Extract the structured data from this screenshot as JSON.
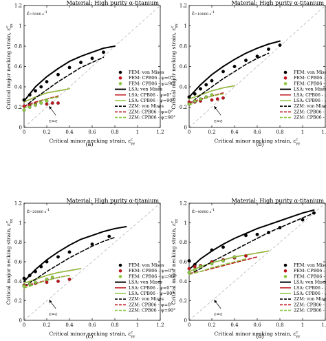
{
  "figure": {
    "common": {
      "material_title": "Material: High purity α-titanium",
      "xlabel": "Critical minor necking strain, ε",
      "xlabel_sub": "yy",
      "xlabel_sup": "c",
      "ylabel": "Critical major necking strain, ε",
      "ylabel_sub": "xx",
      "ylabel_sup": "c",
      "x_ticks": [
        "0",
        "0.2",
        "0.4",
        "0.6",
        "0.8",
        "1",
        "1.2"
      ],
      "y_ticks": [
        "0",
        "0.2",
        "0.4",
        "0.6",
        "0.8",
        "1",
        "1.2"
      ],
      "equal_strain_label": "ε",
      "equal_strain_label_rest": "=ε",
      "legend": [
        "FEM: von Mises",
        "FEM: CPB06 - ψ=0°",
        "FEM: CPB06 - ψ=90°",
        "LSA: von Mises",
        "LSA: CPB06 - ψ=0°",
        "LSA: CPB06 - ψ=90°",
        "2ZM: von Mises",
        "2ZM: CPB06 - ψ=0°",
        "2ZM: CPB06 - ψ=90°"
      ],
      "colors": {
        "von_mises": "#000000",
        "cpb06_psi0": "#c0141c",
        "cpb06_psi90": "#8dc63f",
        "diagonal": "#b4b4b4"
      }
    },
    "panels": [
      {
        "rate_label": "ε̇",
        "rate_text": "=5000 s",
        "caption": "(a)"
      },
      {
        "rate_label": "ε̇",
        "rate_text": "=10000 s",
        "caption": "(b)"
      },
      {
        "rate_label": "ε̇",
        "rate_text": "=20000 s",
        "caption": "(c)"
      },
      {
        "rate_label": "ε̇",
        "rate_text": "=40000 s",
        "caption": "(d)"
      }
    ]
  },
  "chart_data": [
    {
      "type": "scatter",
      "xlabel": "Critical minor necking strain, εᶜyy",
      "ylabel": "Critical major necking strain, εᶜxx",
      "xlim": [
        0,
        1.2
      ],
      "ylim": [
        0,
        1.2
      ],
      "series": [
        {
          "name": "FEM: von Mises",
          "kind": "points",
          "x": [
            0,
            0.05,
            0.1,
            0.15,
            0.2,
            0.3,
            0.4,
            0.5,
            0.6,
            0.7
          ],
          "y": [
            0.27,
            0.32,
            0.36,
            0.4,
            0.45,
            0.52,
            0.59,
            0.64,
            0.68,
            0.74
          ]
        },
        {
          "name": "FEM: CPB06 - ψ=0°",
          "kind": "points",
          "x": [
            0,
            0.05,
            0.1,
            0.2,
            0.25,
            0.3
          ],
          "y": [
            0.21,
            0.22,
            0.23,
            0.23,
            0.24,
            0.24
          ]
        },
        {
          "name": "FEM: CPB06 - ψ=90°",
          "kind": "points",
          "x": [
            0,
            0.05,
            0.1,
            0.15,
            0.2
          ],
          "y": [
            0.17,
            0.2,
            0.22,
            0.24,
            0.26
          ]
        },
        {
          "name": "LSA: von Mises",
          "kind": "line",
          "x": [
            0,
            0.1,
            0.2,
            0.3,
            0.4,
            0.5,
            0.6,
            0.7,
            0.8
          ],
          "y": [
            0.26,
            0.4,
            0.5,
            0.58,
            0.65,
            0.7,
            0.74,
            0.78,
            0.8
          ]
        },
        {
          "name": "LSA: CPB06 - ψ=0°",
          "kind": "line",
          "x": [
            0,
            0.1,
            0.2,
            0.3,
            0.4
          ],
          "y": [
            0.25,
            0.3,
            0.34,
            0.36,
            0.38
          ]
        },
        {
          "name": "LSA: CPB06 - ψ=90°",
          "kind": "line",
          "x": [
            0,
            0.1,
            0.2,
            0.3,
            0.4
          ],
          "y": [
            0.25,
            0.3,
            0.34,
            0.36,
            0.38
          ]
        },
        {
          "name": "2ZM: von Mises",
          "kind": "dash",
          "x": [
            0,
            0.1,
            0.2,
            0.3,
            0.4,
            0.5,
            0.6,
            0.7
          ],
          "y": [
            0.2,
            0.29,
            0.37,
            0.45,
            0.52,
            0.59,
            0.64,
            0.69
          ]
        },
        {
          "name": "2ZM: CPB06 - ψ=0°",
          "kind": "dash",
          "x": [
            0,
            0.1,
            0.2,
            0.3
          ],
          "y": [
            0.21,
            0.25,
            0.28,
            0.31
          ]
        },
        {
          "name": "2ZM: CPB06 - ψ=90°",
          "kind": "dash",
          "x": [
            0,
            0.1,
            0.2,
            0.3
          ],
          "y": [
            0.19,
            0.24,
            0.28,
            0.3
          ]
        }
      ]
    },
    {
      "type": "scatter",
      "xlabel": "Critical minor necking strain, εᶜyy",
      "ylabel": "Critical major necking strain, εᶜxx",
      "xlim": [
        0,
        1.2
      ],
      "ylim": [
        0,
        1.2
      ],
      "series": [
        {
          "name": "FEM: von Mises",
          "kind": "points",
          "x": [
            0,
            0.05,
            0.1,
            0.15,
            0.2,
            0.3,
            0.4,
            0.5,
            0.6,
            0.7,
            0.8
          ],
          "y": [
            0.3,
            0.33,
            0.38,
            0.42,
            0.46,
            0.55,
            0.6,
            0.66,
            0.7,
            0.77,
            0.81
          ]
        },
        {
          "name": "FEM: CPB06 - ψ=0°",
          "kind": "points",
          "x": [
            0,
            0.05,
            0.1,
            0.2,
            0.25,
            0.3
          ],
          "y": [
            0.25,
            0.25,
            0.26,
            0.27,
            0.28,
            0.29
          ]
        },
        {
          "name": "FEM: CPB06 - ψ=90°",
          "kind": "points",
          "x": [
            0,
            0.05,
            0.1,
            0.15,
            0.2
          ],
          "y": [
            0.23,
            0.26,
            0.28,
            0.3,
            0.32
          ]
        },
        {
          "name": "LSA: von Mises",
          "kind": "line",
          "x": [
            0,
            0.1,
            0.2,
            0.3,
            0.4,
            0.5,
            0.6,
            0.7,
            0.8
          ],
          "y": [
            0.3,
            0.42,
            0.52,
            0.6,
            0.67,
            0.73,
            0.78,
            0.82,
            0.85
          ]
        },
        {
          "name": "LSA: CPB06 - ψ=0°",
          "kind": "line",
          "x": [
            0,
            0.1,
            0.2,
            0.3,
            0.4
          ],
          "y": [
            0.28,
            0.32,
            0.36,
            0.39,
            0.41
          ]
        },
        {
          "name": "LSA: CPB06 - ψ=90°",
          "kind": "line",
          "x": [
            0,
            0.1,
            0.2,
            0.3,
            0.4
          ],
          "y": [
            0.28,
            0.32,
            0.36,
            0.39,
            0.41
          ]
        },
        {
          "name": "2ZM: von Mises",
          "kind": "dash",
          "x": [
            0,
            0.1,
            0.2,
            0.3,
            0.4,
            0.5,
            0.6,
            0.7
          ],
          "y": [
            0.23,
            0.32,
            0.4,
            0.48,
            0.55,
            0.62,
            0.68,
            0.73
          ]
        },
        {
          "name": "2ZM: CPB06 - ψ=0°",
          "kind": "dash",
          "x": [
            0,
            0.1,
            0.2,
            0.3
          ],
          "y": [
            0.24,
            0.28,
            0.31,
            0.34
          ]
        },
        {
          "name": "2ZM: CPB06 - ψ=90°",
          "kind": "dash",
          "x": [
            0,
            0.1,
            0.2,
            0.3
          ],
          "y": [
            0.22,
            0.27,
            0.31,
            0.33
          ]
        }
      ]
    },
    {
      "type": "scatter",
      "xlabel": "Critical minor necking strain, εᶜyy",
      "ylabel": "Critical major necking strain, εᶜxx",
      "xlim": [
        0,
        1.2
      ],
      "ylim": [
        0,
        1.2
      ],
      "series": [
        {
          "name": "FEM: von Mises",
          "kind": "points",
          "x": [
            0,
            0.05,
            0.1,
            0.15,
            0.2,
            0.3,
            0.4,
            0.6,
            0.75
          ],
          "y": [
            0.43,
            0.46,
            0.5,
            0.55,
            0.6,
            0.65,
            0.7,
            0.78,
            0.86
          ]
        },
        {
          "name": "FEM: CPB06 - ψ=0°",
          "kind": "points",
          "x": [
            0,
            0.05,
            0.1,
            0.2,
            0.3,
            0.4
          ],
          "y": [
            0.36,
            0.37,
            0.38,
            0.39,
            0.4,
            0.42
          ]
        },
        {
          "name": "FEM: CPB06 - ψ=90°",
          "kind": "points",
          "x": [
            0,
            0.05,
            0.1,
            0.2,
            0.25
          ],
          "y": [
            0.35,
            0.37,
            0.39,
            0.42,
            0.44
          ]
        },
        {
          "name": "LSA: von Mises",
          "kind": "line",
          "x": [
            0,
            0.1,
            0.2,
            0.3,
            0.4,
            0.5,
            0.6,
            0.7,
            0.8,
            0.9
          ],
          "y": [
            0.4,
            0.52,
            0.62,
            0.7,
            0.77,
            0.83,
            0.87,
            0.91,
            0.94,
            0.96
          ]
        },
        {
          "name": "LSA: CPB06 - ψ=0°",
          "kind": "line",
          "x": [
            0,
            0.1,
            0.2,
            0.3,
            0.4,
            0.5
          ],
          "y": [
            0.38,
            0.42,
            0.46,
            0.49,
            0.51,
            0.53
          ]
        },
        {
          "name": "LSA: CPB06 - ψ=90°",
          "kind": "line",
          "x": [
            0,
            0.1,
            0.2,
            0.3,
            0.4,
            0.5
          ],
          "y": [
            0.38,
            0.42,
            0.46,
            0.49,
            0.51,
            0.53
          ]
        },
        {
          "name": "2ZM: von Mises",
          "kind": "dash",
          "x": [
            0,
            0.1,
            0.2,
            0.3,
            0.4,
            0.5,
            0.6,
            0.7,
            0.8
          ],
          "y": [
            0.35,
            0.42,
            0.5,
            0.57,
            0.64,
            0.7,
            0.76,
            0.81,
            0.85
          ]
        },
        {
          "name": "2ZM: CPB06 - ψ=0°",
          "kind": "dash",
          "x": [
            0,
            0.1,
            0.2,
            0.3,
            0.4
          ],
          "y": [
            0.35,
            0.38,
            0.41,
            0.44,
            0.46
          ]
        },
        {
          "name": "2ZM: CPB06 - ψ=90°",
          "kind": "dash",
          "x": [
            0,
            0.1,
            0.2,
            0.3,
            0.4
          ],
          "y": [
            0.33,
            0.37,
            0.41,
            0.44,
            0.46
          ]
        }
      ]
    },
    {
      "type": "scatter",
      "xlabel": "Critical minor necking strain, εᶜyy",
      "ylabel": "Critical major necking strain, εᶜxx",
      "xlim": [
        0,
        1.2
      ],
      "ylim": [
        0,
        1.2
      ],
      "series": [
        {
          "name": "FEM: von Mises",
          "kind": "points",
          "x": [
            0,
            0.05,
            0.2,
            0.3,
            0.5,
            0.6,
            0.7,
            0.8,
            1.0,
            1.1
          ],
          "y": [
            0.61,
            0.57,
            0.72,
            0.75,
            0.87,
            0.88,
            0.9,
            0.95,
            1.03,
            1.1
          ]
        },
        {
          "name": "FEM: CPB06 - ψ=0°",
          "kind": "points",
          "x": [
            0,
            0.05,
            0.1,
            0.2,
            0.3,
            0.4,
            0.5
          ],
          "y": [
            0.53,
            0.55,
            0.56,
            0.6,
            0.62,
            0.64,
            0.66
          ]
        },
        {
          "name": "FEM: CPB06 - ψ=90°",
          "kind": "points",
          "x": [
            0,
            0.05,
            0.1,
            0.2,
            0.3,
            0.4
          ],
          "y": [
            0.49,
            0.52,
            0.55,
            0.58,
            0.61,
            0.65
          ]
        },
        {
          "name": "LSA: von Mises",
          "kind": "line",
          "x": [
            0,
            0.1,
            0.2,
            0.3,
            0.4,
            0.5,
            0.6,
            0.7,
            0.8,
            0.9,
            1.0,
            1.1
          ],
          "y": [
            0.52,
            0.63,
            0.71,
            0.78,
            0.84,
            0.89,
            0.94,
            0.98,
            1.02,
            1.06,
            1.1,
            1.13
          ]
        },
        {
          "name": "LSA: CPB06 - ψ=0°",
          "kind": "line",
          "x": [
            0,
            0.1,
            0.2,
            0.3,
            0.4,
            0.5,
            0.6,
            0.7
          ],
          "y": [
            0.5,
            0.55,
            0.59,
            0.62,
            0.65,
            0.67,
            0.69,
            0.71
          ]
        },
        {
          "name": "LSA: CPB06 - ψ=90°",
          "kind": "line",
          "x": [
            0,
            0.1,
            0.2,
            0.3,
            0.4,
            0.5,
            0.6,
            0.7
          ],
          "y": [
            0.5,
            0.55,
            0.59,
            0.62,
            0.65,
            0.67,
            0.69,
            0.71
          ]
        },
        {
          "name": "2ZM: von Mises",
          "kind": "dash",
          "x": [
            0,
            0.1,
            0.2,
            0.3,
            0.4,
            0.5,
            0.6,
            0.7,
            0.8,
            0.9,
            1.0,
            1.1
          ],
          "y": [
            0.47,
            0.53,
            0.6,
            0.66,
            0.72,
            0.78,
            0.84,
            0.9,
            0.95,
            1.0,
            1.05,
            1.1
          ]
        },
        {
          "name": "2ZM: CPB06 - ψ=0°",
          "kind": "dash",
          "x": [
            0,
            0.1,
            0.2,
            0.3,
            0.4,
            0.5,
            0.6
          ],
          "y": [
            0.48,
            0.5,
            0.53,
            0.56,
            0.59,
            0.62,
            0.65
          ]
        },
        {
          "name": "2ZM: CPB06 - ψ=90°",
          "kind": "dash",
          "x": [
            0,
            0.1,
            0.2,
            0.3,
            0.4,
            0.5
          ],
          "y": [
            0.47,
            0.5,
            0.54,
            0.57,
            0.6,
            0.63
          ]
        }
      ]
    }
  ]
}
